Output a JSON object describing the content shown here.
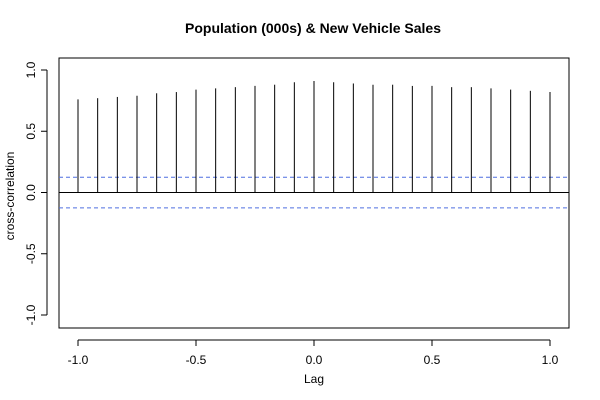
{
  "chart_data": {
    "type": "bar",
    "title": "Population (000s) & New Vehicle Sales",
    "xlabel": "Lag",
    "ylabel": "cross-correlation",
    "xlim": [
      -1.0,
      1.0
    ],
    "ylim": [
      -1.0,
      1.0
    ],
    "x_ticks": [
      "-1.0",
      "-0.5",
      "0.0",
      "0.5",
      "1.0"
    ],
    "y_ticks": [
      "-1.0",
      "-0.5",
      "0.0",
      "0.5",
      "1.0"
    ],
    "x": [
      -1.0,
      -0.9167,
      -0.8333,
      -0.75,
      -0.6667,
      -0.5833,
      -0.5,
      -0.4167,
      -0.3333,
      -0.25,
      -0.1667,
      -0.0833,
      0.0,
      0.0833,
      0.1667,
      0.25,
      0.3333,
      0.4167,
      0.5,
      0.5833,
      0.6667,
      0.75,
      0.8333,
      0.9167,
      1.0
    ],
    "values": [
      0.76,
      0.77,
      0.78,
      0.79,
      0.81,
      0.82,
      0.84,
      0.85,
      0.86,
      0.87,
      0.88,
      0.9,
      0.91,
      0.9,
      0.89,
      0.88,
      0.88,
      0.87,
      0.87,
      0.86,
      0.86,
      0.85,
      0.84,
      0.83,
      0.82
    ],
    "confidence_bounds": [
      0.125,
      -0.125
    ],
    "zero_line": true,
    "colors": {
      "bars": "#000000",
      "zero_line": "#000000",
      "confidence": "#4f6fe0"
    }
  }
}
